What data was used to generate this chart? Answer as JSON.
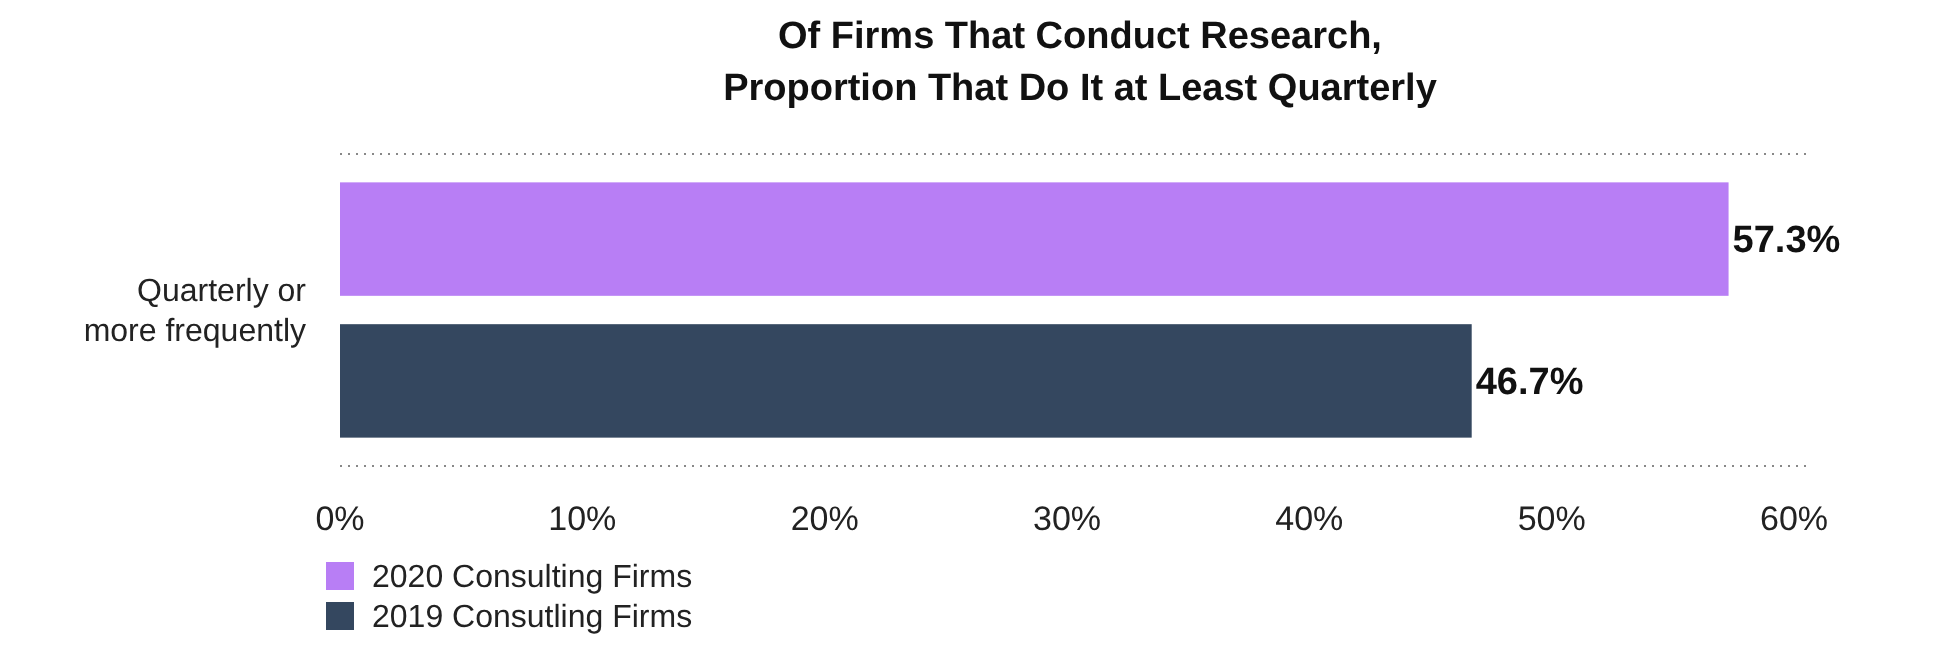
{
  "chart_data": {
    "type": "bar",
    "orientation": "horizontal",
    "title": "Of Firms That Conduct Research,\nProportion That Do It at Least Quarterly",
    "categories": [
      "Quarterly or more frequently"
    ],
    "series": [
      {
        "name": "2020 Consulting Firms",
        "color": "#b87ef5",
        "values": [
          57.3
        ],
        "value_labels": [
          "57.3%"
        ]
      },
      {
        "name": "2019 Consutling Firms",
        "color": "#34475f",
        "values": [
          46.7
        ],
        "value_labels": [
          "46.7%"
        ]
      }
    ],
    "xlim": [
      0,
      60
    ],
    "xticks": [
      {
        "value": 0,
        "label": "0%"
      },
      {
        "value": 10,
        "label": "10%"
      },
      {
        "value": 20,
        "label": "20%"
      },
      {
        "value": 30,
        "label": "30%"
      },
      {
        "value": 40,
        "label": "40%"
      },
      {
        "value": 50,
        "label": "50%"
      },
      {
        "value": 60,
        "label": "60%"
      }
    ],
    "grid": false,
    "legend": "bottom left"
  }
}
